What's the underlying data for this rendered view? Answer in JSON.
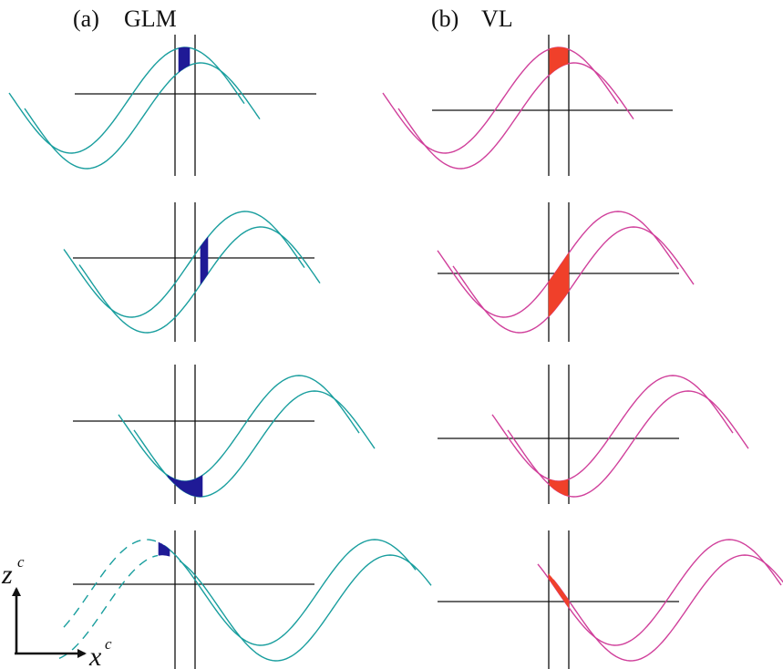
{
  "columns": [
    {
      "key": "a",
      "tag": "(a)",
      "name": "GLM",
      "wave_color": "#199e9e",
      "parcel_color": "#1f1a96"
    },
    {
      "key": "b",
      "tag": "(b)",
      "name": "VL",
      "wave_color": "#d0409b",
      "parcel_color": "#f0402a"
    }
  ],
  "axes": {
    "vertical": {
      "symbol": "z",
      "superscript": "c"
    },
    "horizontal": {
      "symbol": "x",
      "superscript": "c"
    }
  }
}
